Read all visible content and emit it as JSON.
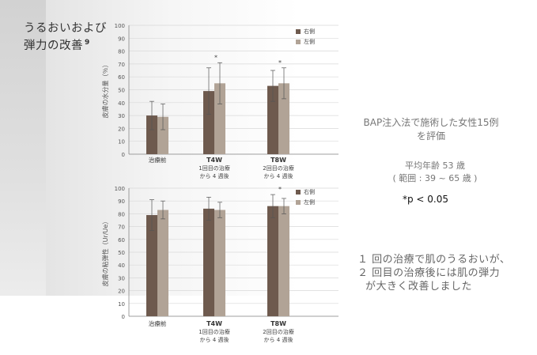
{
  "title": {
    "line1": "うるおいおよび",
    "line2": "弾力の改善",
    "ref": "9"
  },
  "study": {
    "line1": "BAP注入法で施術した女性15例",
    "line2": "を評価"
  },
  "age": {
    "line1": "平均年齢 53 歳",
    "line2": "( 範囲 : 39 ~ 65 歳 )"
  },
  "pvalue": "*p < 0.05",
  "conclusion": {
    "line1": "１ 回の治療で肌のうるおいが、",
    "line2": "２ 回目の治療後には肌の弾力",
    "line3": "が大きく改善しました"
  },
  "colors": {
    "right": "#6e5a4e",
    "left": "#b1a396"
  },
  "chart_data": [
    {
      "type": "bar",
      "ylabel": "皮膚の水分量（％）",
      "ylim": [
        0,
        100
      ],
      "yticks": [
        0,
        10,
        20,
        30,
        40,
        50,
        60,
        70,
        80,
        90,
        100
      ],
      "grid": true,
      "legend_position": "top-right",
      "categories": [
        {
          "name": "治療前",
          "sub1": "",
          "sub2": ""
        },
        {
          "name": "T4W",
          "sub1": "1回目の治療",
          "sub2": "から 4 週後"
        },
        {
          "name": "T8W",
          "sub1": "2回目の治療",
          "sub2": "から 4 週後"
        }
      ],
      "series": [
        {
          "name": "右側",
          "values": [
            30,
            49,
            53
          ],
          "errors": [
            11,
            18,
            12
          ]
        },
        {
          "name": "左側",
          "values": [
            29,
            55,
            55
          ],
          "errors": [
            10,
            16,
            12
          ]
        }
      ],
      "annotations": [
        "",
        "*",
        "*"
      ]
    },
    {
      "type": "bar",
      "ylabel": "皮膚の粘弾性（Ur/Ue）",
      "ylim": [
        0,
        100
      ],
      "yticks": [
        0,
        10,
        20,
        30,
        40,
        50,
        60,
        70,
        80,
        90,
        100
      ],
      "grid": true,
      "legend_position": "top-right",
      "categories": [
        {
          "name": "治療前",
          "sub1": "",
          "sub2": ""
        },
        {
          "name": "T4W",
          "sub1": "1回目の治療",
          "sub2": "から 4 週後"
        },
        {
          "name": "T8W",
          "sub1": "2回目の治療",
          "sub2": "から 4 週後"
        }
      ],
      "series": [
        {
          "name": "右側",
          "values": [
            79,
            84,
            86
          ],
          "errors": [
            12,
            9,
            9
          ]
        },
        {
          "name": "左側",
          "values": [
            83,
            83,
            86
          ],
          "errors": [
            7,
            6,
            6
          ]
        }
      ],
      "annotations": [
        "",
        "",
        "*"
      ]
    }
  ]
}
